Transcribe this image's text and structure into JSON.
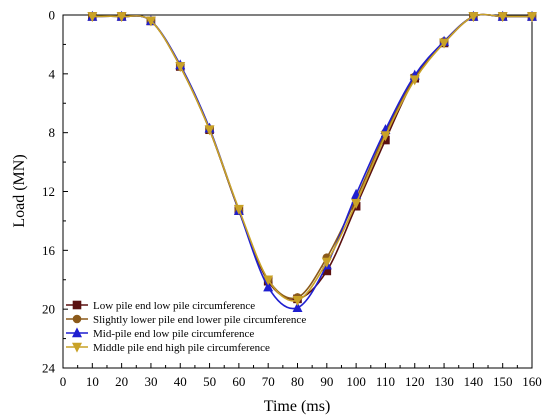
{
  "chart_data": {
    "type": "line",
    "title": "",
    "xlabel": "Time (ms)",
    "ylabel": "Load (MN)",
    "xlim": [
      0,
      160
    ],
    "ylim": [
      0,
      24
    ],
    "y_inverted": true,
    "x_ticks": [
      0,
      10,
      20,
      30,
      40,
      50,
      60,
      70,
      80,
      90,
      100,
      110,
      120,
      130,
      140,
      150,
      160
    ],
    "y_ticks": [
      0,
      4,
      8,
      12,
      16,
      20,
      24
    ],
    "grid": false,
    "legend_placement": "bottom-left",
    "x": [
      10,
      20,
      30,
      40,
      50,
      60,
      70,
      80,
      90,
      100,
      110,
      120,
      130,
      140,
      150,
      160
    ],
    "series": [
      {
        "name": "Low pile end low pile circumference",
        "color": "#5a1010",
        "marker": "square",
        "values": [
          0.1,
          0.1,
          0.4,
          3.5,
          7.8,
          13.3,
          18.1,
          19.3,
          17.4,
          13.0,
          8.5,
          4.3,
          1.9,
          0.1,
          0.1,
          0.1
        ]
      },
      {
        "name": "Slightly lower pile end lower pile circumference",
        "color": "#8b5a1a",
        "marker": "circle",
        "values": [
          0.1,
          0.1,
          0.4,
          3.5,
          7.8,
          13.3,
          18.0,
          19.2,
          16.5,
          12.5,
          8.0,
          4.2,
          1.8,
          0.1,
          0.1,
          0.1
        ]
      },
      {
        "name": "Mid-pile end low pile circumference",
        "color": "#1f1fd0",
        "marker": "triangle-up",
        "values": [
          0.1,
          0.1,
          0.4,
          3.4,
          7.7,
          13.3,
          18.5,
          19.9,
          17.0,
          12.2,
          7.8,
          4.1,
          1.8,
          0.1,
          0.1,
          0.1
        ]
      },
      {
        "name": "Middle pile end high pile circumference",
        "color": "#c9a227",
        "marker": "triangle-down",
        "values": [
          0.1,
          0.1,
          0.4,
          3.5,
          7.8,
          13.2,
          18.0,
          19.4,
          16.8,
          12.8,
          8.2,
          4.4,
          1.9,
          0.1,
          0.1,
          0.1
        ]
      }
    ]
  }
}
